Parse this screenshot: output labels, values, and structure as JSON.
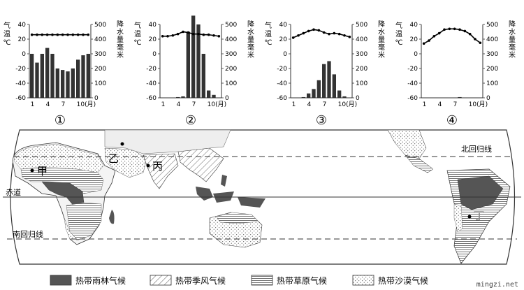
{
  "charts_common": {
    "temp_axis_label": "气温(℃)",
    "precip_axis_label": "降水量(毫米)",
    "temp_ticks": [
      40,
      20,
      0,
      -20,
      -40,
      -60
    ],
    "precip_ticks": [
      500,
      400,
      300,
      200,
      100,
      0
    ],
    "x_ticks": [
      "1",
      "4",
      "7",
      "10(月)"
    ],
    "temp_range": [
      -60,
      40
    ],
    "precip_range": [
      0,
      500
    ]
  },
  "chart_data": [
    {
      "type": "bar",
      "title": "①",
      "months": [
        1,
        2,
        3,
        4,
        5,
        6,
        7,
        8,
        9,
        10,
        11,
        12
      ],
      "temperature": [
        26,
        26,
        26,
        26,
        26,
        26,
        26,
        26,
        26,
        26,
        26,
        26
      ],
      "precipitation": [
        300,
        240,
        300,
        340,
        300,
        200,
        190,
        180,
        200,
        260,
        290,
        300
      ]
    },
    {
      "type": "bar",
      "title": "②",
      "months": [
        1,
        2,
        3,
        4,
        5,
        6,
        7,
        8,
        9,
        10,
        11,
        12
      ],
      "temperature": [
        24,
        24,
        25,
        27,
        30,
        29,
        27,
        27,
        26,
        26,
        25,
        24
      ],
      "precipitation": [
        0,
        0,
        0,
        5,
        10,
        450,
        560,
        500,
        300,
        50,
        20,
        0
      ]
    },
    {
      "type": "bar",
      "title": "③",
      "months": [
        1,
        2,
        3,
        4,
        5,
        6,
        7,
        8,
        9,
        10,
        11,
        12
      ],
      "temperature": [
        22,
        25,
        28,
        31,
        33,
        32,
        29,
        27,
        28,
        27,
        25,
        23
      ],
      "precipitation": [
        0,
        0,
        5,
        30,
        60,
        120,
        230,
        250,
        160,
        50,
        10,
        0
      ]
    },
    {
      "type": "bar",
      "title": "④",
      "months": [
        1,
        2,
        3,
        4,
        5,
        6,
        7,
        8,
        9,
        10,
        11,
        12
      ],
      "temperature": [
        14,
        18,
        24,
        28,
        33,
        34,
        34,
        33,
        31,
        27,
        20,
        15
      ],
      "precipitation": [
        0,
        0,
        0,
        0,
        0,
        0,
        2,
        5,
        2,
        0,
        0,
        0
      ]
    }
  ],
  "map": {
    "tropic_north": "北回归线",
    "equator": "赤道",
    "tropic_south": "南回归线",
    "place_jia": "甲",
    "place_yi": "乙",
    "place_bing": "丙",
    "place_ding": "丁"
  },
  "legend": [
    {
      "label": "热带雨林气候",
      "pattern": "solid"
    },
    {
      "label": "热带季风气候",
      "pattern": "diag"
    },
    {
      "label": "热带草原气候",
      "pattern": "horiz"
    },
    {
      "label": "热带沙漠气候",
      "pattern": "dots"
    }
  ],
  "watermark": "mingzi.net"
}
